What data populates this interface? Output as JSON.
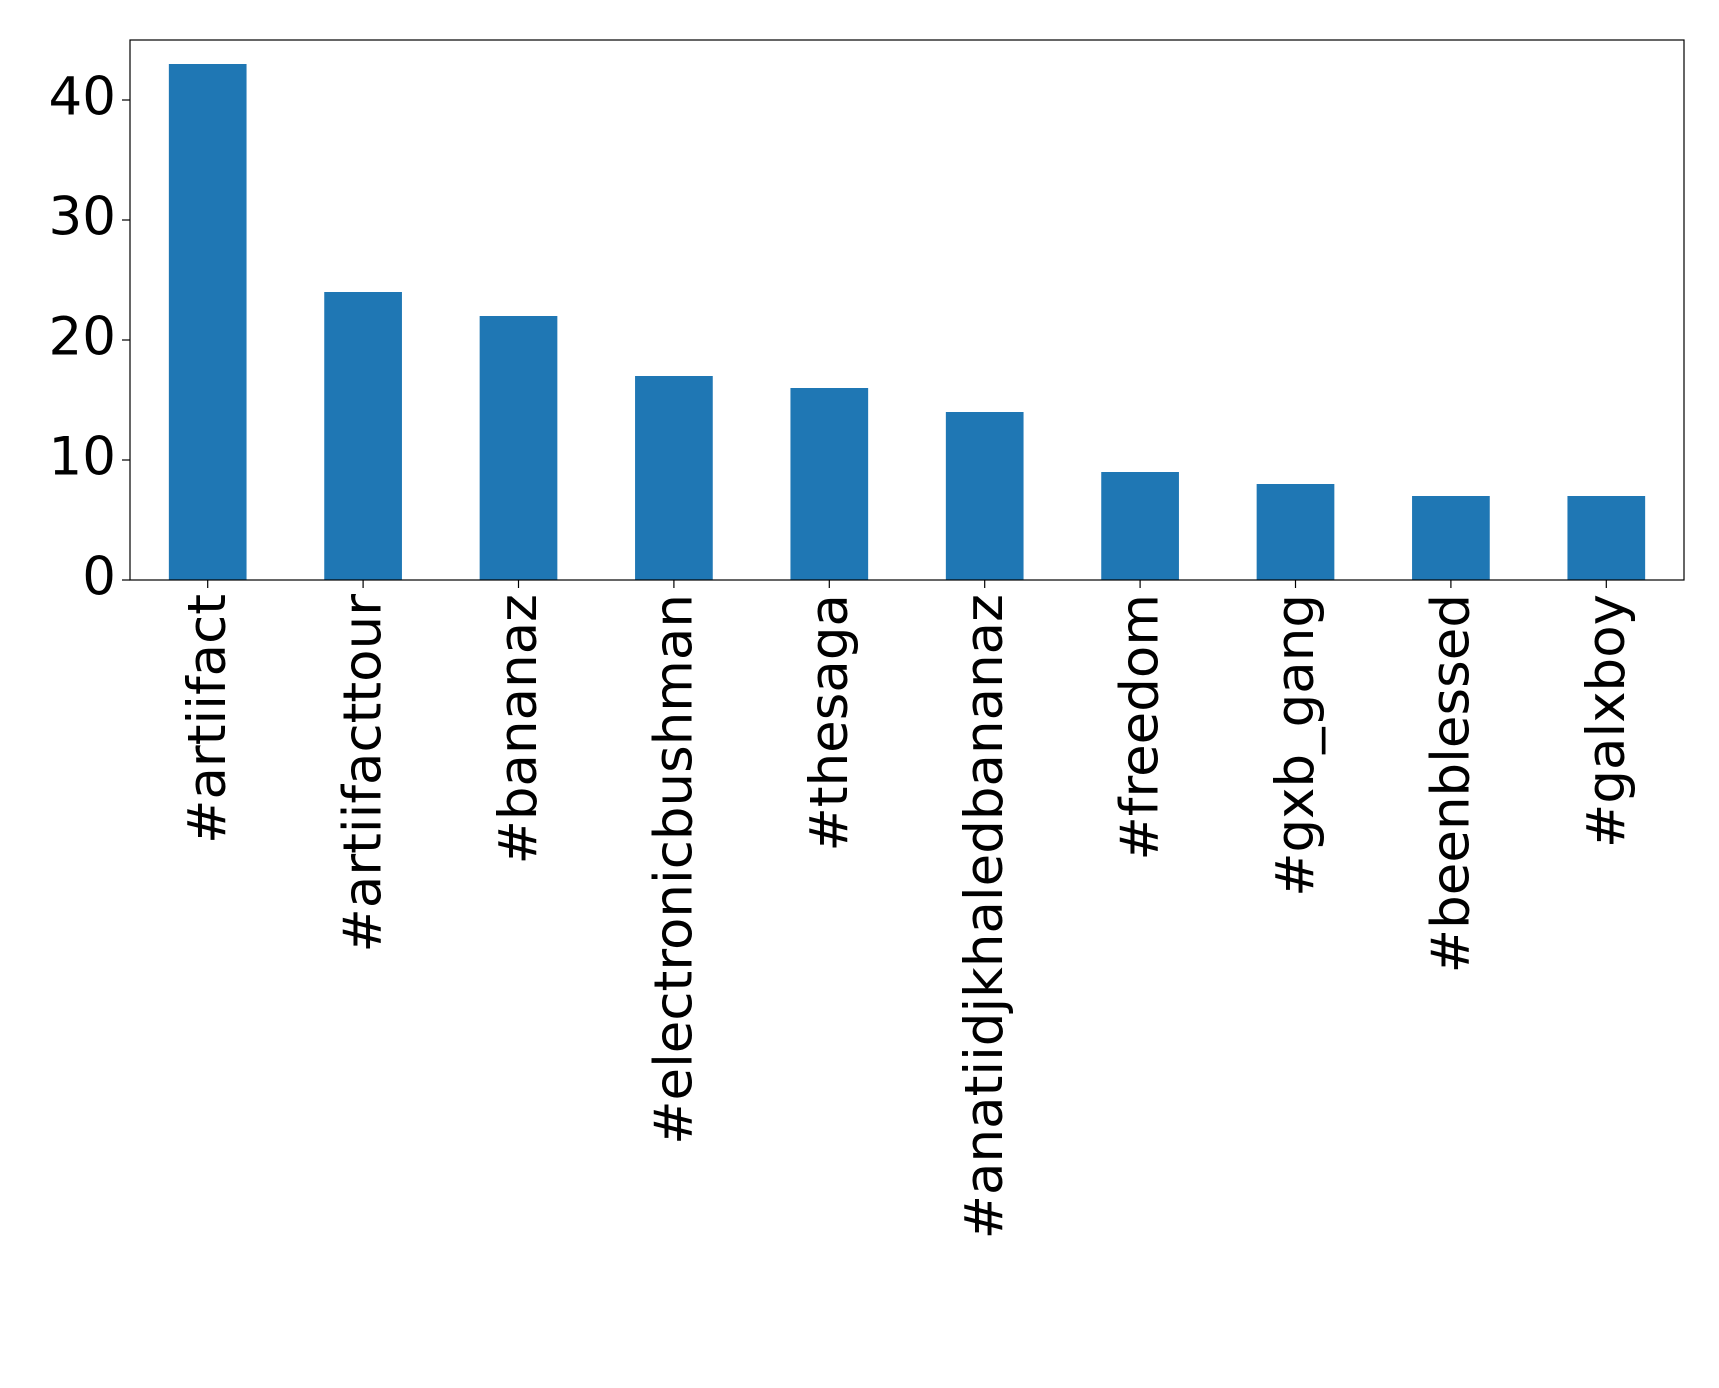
{
  "chart_data": {
    "type": "bar",
    "categories": [
      "#artiifact",
      "#artiifacttour",
      "#bananaz",
      "#electronicbushman",
      "#thesaga",
      "#anatiidjkhaledbananaz",
      "#freedom",
      "#gxb_gang",
      "#beenblessed",
      "#galxboy"
    ],
    "values": [
      43,
      24,
      22,
      17,
      16,
      14,
      9,
      8,
      7,
      7
    ],
    "color": "#1f77b4",
    "ylim": [
      0,
      45
    ],
    "yticks": [
      0,
      10,
      20,
      30,
      40
    ],
    "grid": false
  }
}
